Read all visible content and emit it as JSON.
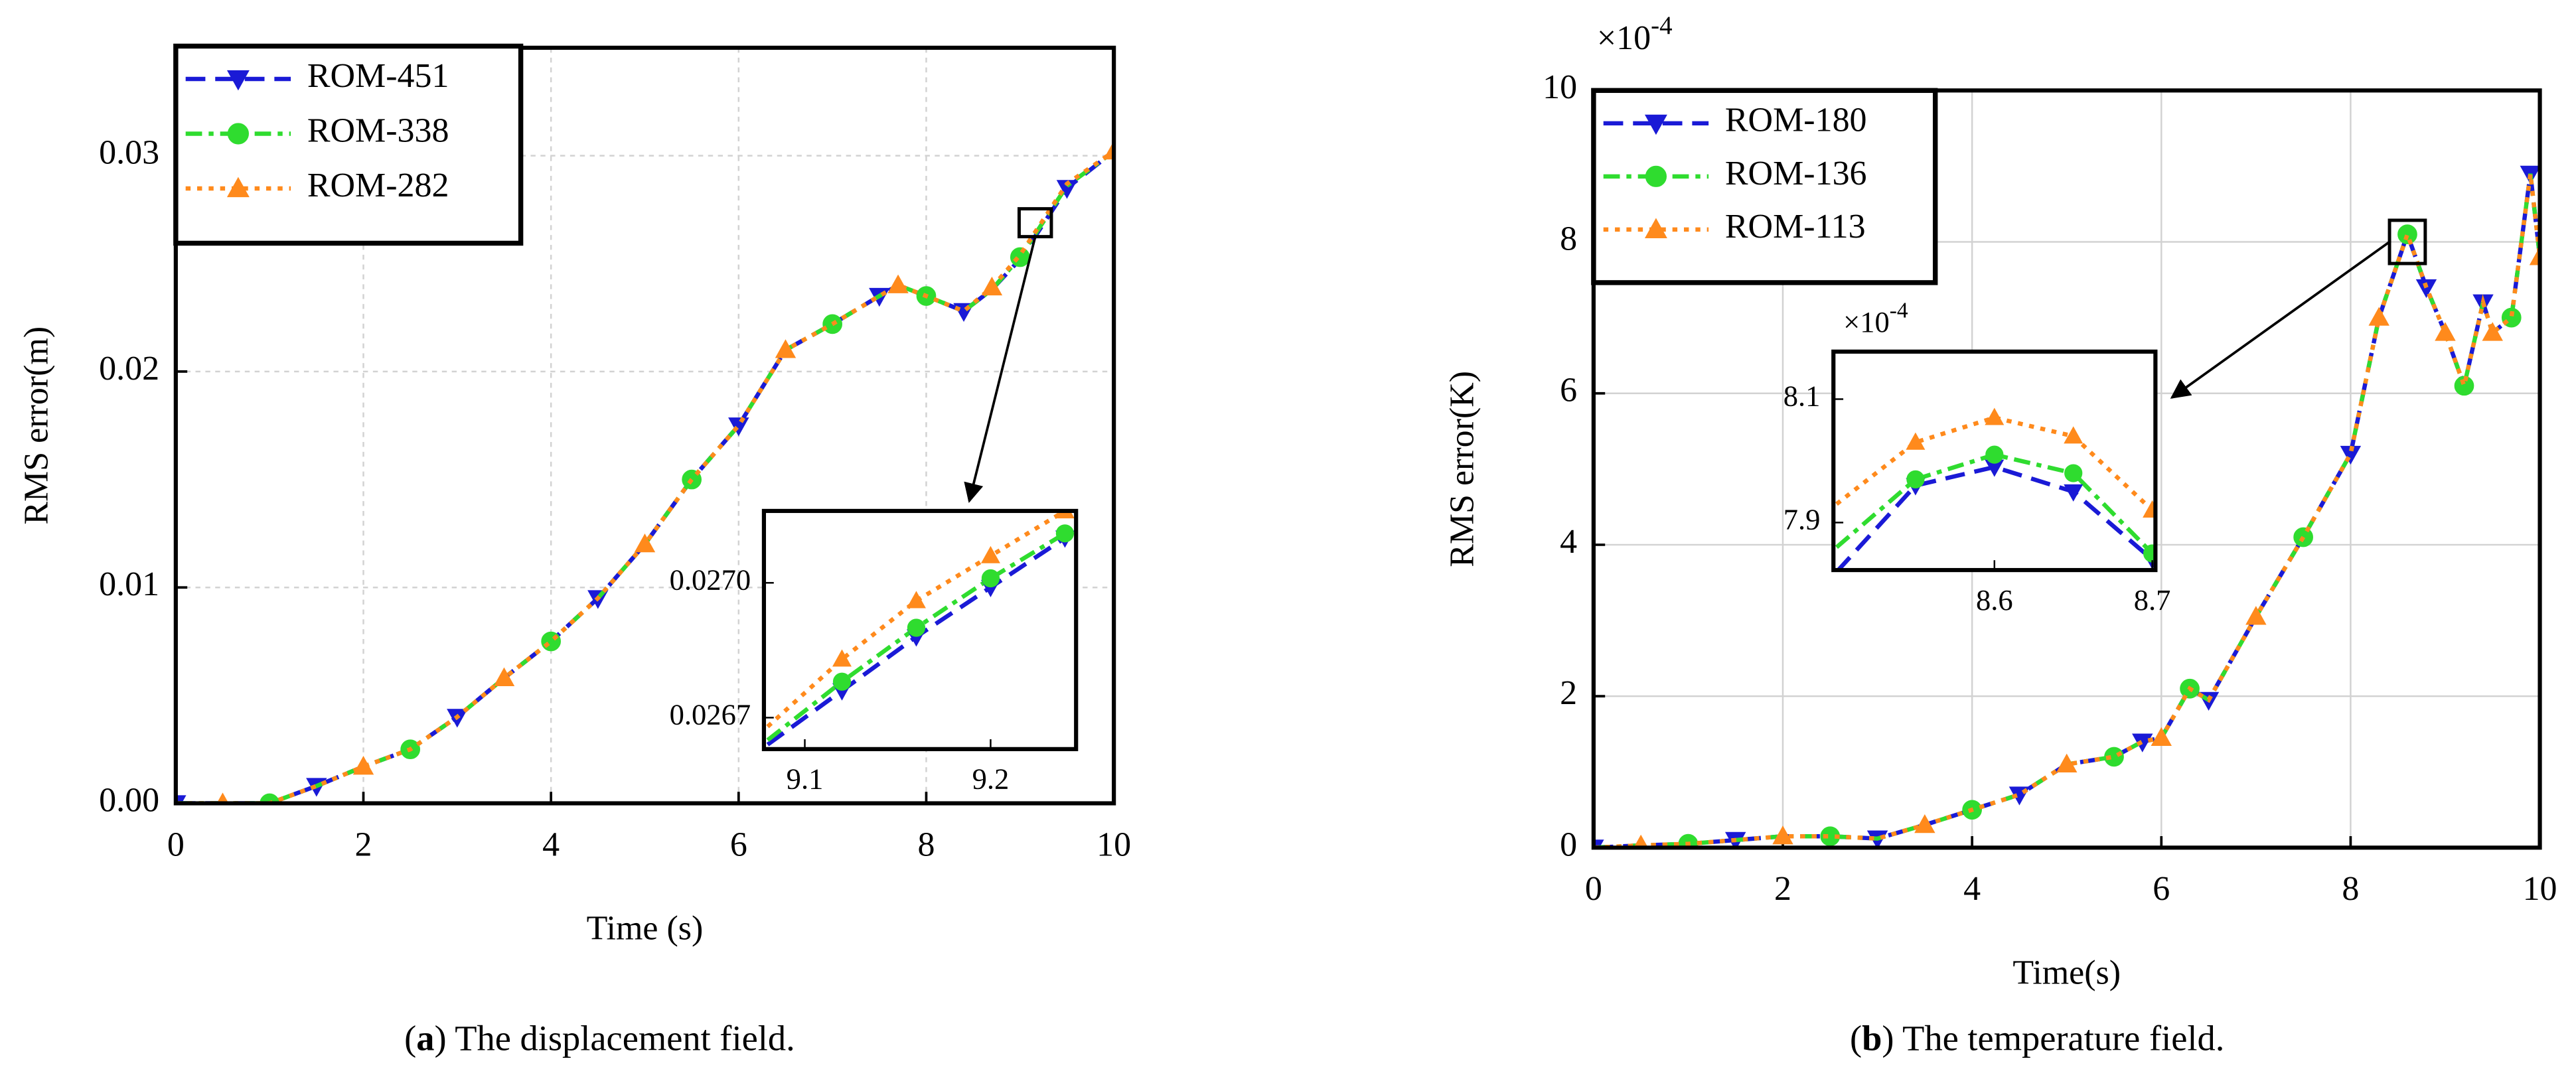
{
  "chart_data": [
    {
      "type": "line",
      "x_label": "Time (s)",
      "y_label": "RMS error(m)",
      "caption": {
        "prefix": "(",
        "letter": "a",
        "suffix": ") The displacement field."
      },
      "xlim": [
        0,
        10
      ],
      "ylim": [
        0,
        0.035
      ],
      "xticks": [
        0,
        2,
        4,
        6,
        8,
        10
      ],
      "yticks": [
        {
          "value": 0,
          "label": "0.00"
        },
        0.01,
        0.02,
        0.03
      ],
      "grid": true,
      "legend": "upper left",
      "x": [
        0,
        0.5,
        1,
        1.5,
        2,
        2.5,
        3,
        3.5,
        4,
        4.5,
        5,
        5.5,
        6,
        6.5,
        7,
        7.5,
        7.7,
        8,
        8.4,
        8.7,
        9,
        9.5,
        10
      ],
      "series": [
        {
          "name": "ROM-451",
          "color": "#1a1ad6",
          "dash": "12,6",
          "marker": "triangle-down",
          "values": [
            0,
            0,
            0,
            0.0008,
            0.0017,
            0.0025,
            0.004,
            0.0058,
            0.0075,
            0.0095,
            0.012,
            0.015,
            0.0175,
            0.021,
            0.0222,
            0.0235,
            0.024,
            0.0235,
            0.0228,
            0.0238,
            0.0252,
            0.0285,
            0.0302
          ]
        },
        {
          "name": "ROM-338",
          "color": "#2fdc2f",
          "dash": "10,4,3,4",
          "marker": "circle",
          "values": [
            0,
            0,
            0,
            0.0008,
            0.0017,
            0.0025,
            0.004,
            0.0058,
            0.0075,
            0.0095,
            0.012,
            0.015,
            0.0175,
            0.021,
            0.0222,
            0.0235,
            0.024,
            0.0235,
            0.0228,
            0.0238,
            0.0253,
            0.0286,
            0.0302
          ]
        },
        {
          "name": "ROM-282",
          "color": "#ff8a1c",
          "dash": "3,4",
          "marker": "triangle-up",
          "values": [
            0,
            0,
            0,
            0.0008,
            0.0017,
            0.0025,
            0.004,
            0.0058,
            0.0075,
            0.0095,
            0.012,
            0.015,
            0.0175,
            0.021,
            0.0222,
            0.0235,
            0.024,
            0.0235,
            0.0228,
            0.0239,
            0.0254,
            0.0287,
            0.0302
          ]
        }
      ],
      "inset": {
        "xlim": [
          9.078,
          9.246
        ],
        "ylim": [
          0.02663,
          0.02716
        ],
        "xticks": [
          9.1,
          9.2
        ],
        "yticks": [
          {
            "value": 0.027,
            "label": "0.0270"
          },
          {
            "value": 0.0267,
            "label": "0.0267"
          }
        ],
        "x": [
          9.08,
          9.12,
          9.16,
          9.2,
          9.24
        ],
        "series": [
          {
            "color": "#1a1ad6",
            "values": [
              0.02664,
              0.02676,
              0.02688,
              0.02699,
              0.0271
            ]
          },
          {
            "color": "#2fdc2f",
            "values": [
              0.02665,
              0.02678,
              0.0269,
              0.02701,
              0.02711
            ]
          },
          {
            "color": "#ff8a1c",
            "values": [
              0.02668,
              0.02683,
              0.02696,
              0.02706,
              0.02716
            ]
          }
        ]
      }
    },
    {
      "type": "line",
      "x_label": "Time(s)",
      "y_label": "RMS error(K)",
      "caption": {
        "prefix": "(",
        "letter": "b",
        "suffix": ") The temperature field."
      },
      "scale_label": {
        "base": "×10",
        "exponent": "-4"
      },
      "xlim": [
        0,
        10
      ],
      "ylim": [
        0,
        10
      ],
      "xticks": [
        0,
        2,
        4,
        6,
        8,
        10
      ],
      "yticks": [
        0,
        2,
        4,
        6,
        8,
        10
      ],
      "grid": true,
      "legend": "upper left",
      "x": [
        0,
        0.5,
        1,
        1.5,
        2,
        2.5,
        3,
        3.5,
        4,
        4.5,
        5,
        5.5,
        5.8,
        6,
        6.3,
        6.5,
        7,
        7.5,
        8,
        8.3,
        8.6,
        8.8,
        9,
        9.2,
        9.4,
        9.5,
        9.7,
        9.9,
        10
      ],
      "series": [
        {
          "name": "ROM-180",
          "color": "#1a1ad6",
          "dash": "12,6",
          "marker": "triangle-down",
          "values": [
            0,
            0.03,
            0.05,
            0.1,
            0.15,
            0.15,
            0.12,
            0.3,
            0.5,
            0.7,
            1.1,
            1.2,
            1.4,
            1.45,
            2.1,
            1.95,
            3.05,
            4.1,
            5.2,
            7.0,
            8.1,
            7.4,
            6.8,
            6.1,
            7.2,
            6.8,
            7.0,
            8.9,
            7.8
          ]
        },
        {
          "name": "ROM-136",
          "color": "#2fdc2f",
          "dash": "10,4,3,4",
          "marker": "circle",
          "values": [
            0,
            0.03,
            0.05,
            0.1,
            0.15,
            0.15,
            0.12,
            0.3,
            0.5,
            0.7,
            1.1,
            1.2,
            1.4,
            1.45,
            2.1,
            1.95,
            3.05,
            4.1,
            5.2,
            7.0,
            8.1,
            7.4,
            6.8,
            6.1,
            7.2,
            6.8,
            7.0,
            8.9,
            7.8
          ]
        },
        {
          "name": "ROM-113",
          "color": "#ff8a1c",
          "dash": "3,4",
          "marker": "triangle-up",
          "values": [
            0,
            0.03,
            0.05,
            0.1,
            0.15,
            0.15,
            0.12,
            0.3,
            0.5,
            0.7,
            1.1,
            1.2,
            1.4,
            1.45,
            2.1,
            1.95,
            3.05,
            4.1,
            5.2,
            7.0,
            8.1,
            7.4,
            6.8,
            6.1,
            7.2,
            6.8,
            7.0,
            8.9,
            7.8
          ]
        }
      ],
      "inset": {
        "scale_label": {
          "base": "×10",
          "exponent": "-4"
        },
        "xlim": [
          8.498,
          8.702
        ],
        "ylim": [
          7.823,
          8.177
        ],
        "xticks": [
          8.6,
          8.7
        ],
        "yticks": [
          8.1,
          7.9
        ],
        "x": [
          8.5,
          8.55,
          8.6,
          8.65,
          8.7
        ],
        "series": [
          {
            "color": "#1a1ad6",
            "values": [
              7.82,
              7.96,
              7.99,
              7.95,
              7.84
            ]
          },
          {
            "color": "#2fdc2f",
            "values": [
              7.86,
              7.97,
              8.01,
              7.98,
              7.85
            ]
          },
          {
            "color": "#ff8a1c",
            "values": [
              7.93,
              8.03,
              8.07,
              8.04,
              7.92
            ]
          }
        ]
      }
    }
  ]
}
